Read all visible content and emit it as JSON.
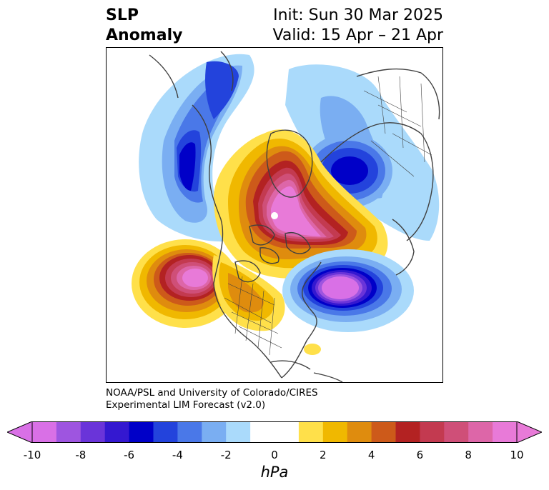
{
  "title": {
    "product_line1": "SLP",
    "product_line2": "Anomaly",
    "init": "Init: Sun 30 Mar 2025",
    "valid": "Valid: 15 Apr – 21 Apr"
  },
  "credit": {
    "line1": "NOAA/PSL and University of Colorado/CIRES",
    "line2": "Experimental LIM Forecast (v2.0)"
  },
  "colorbar": {
    "unit": "hPa",
    "min": -10,
    "max": 10,
    "step": 1,
    "extend": "both",
    "ticks": [
      "-10",
      "-8",
      "-6",
      "-4",
      "-2",
      "0",
      "2",
      "4",
      "6",
      "8",
      "10"
    ],
    "colors": [
      "#d970e6",
      "#9e55e0",
      "#6a34d9",
      "#3418d0",
      "#0000c8",
      "#2343dc",
      "#4a78e8",
      "#7aaef2",
      "#aadafb",
      "#ffffff",
      "#ffffff",
      "#ffe04a",
      "#f0b800",
      "#df8c0e",
      "#cd5a1a",
      "#b32222",
      "#c33a50",
      "#cf4f78",
      "#dd66a8",
      "#e87ad8"
    ],
    "lower_extend_color": "#d970e6",
    "upper_extend_color": "#e87ad8"
  },
  "map": {
    "projection": "polar stereographic",
    "background": "#ffffff",
    "coastline_color": "#404040",
    "anomalies": [
      {
        "name": "arctic-high",
        "sign": "positive",
        "peak": 9
      },
      {
        "name": "north-pacific-high",
        "sign": "positive",
        "peak": 9
      },
      {
        "name": "north-atlantic-low",
        "sign": "negative",
        "peak": -10
      },
      {
        "name": "siberia-low",
        "sign": "negative",
        "peak": -6
      },
      {
        "name": "alaska-low",
        "sign": "negative",
        "peak": -6
      },
      {
        "name": "eurasia-low",
        "sign": "negative",
        "peak": -4
      }
    ]
  }
}
